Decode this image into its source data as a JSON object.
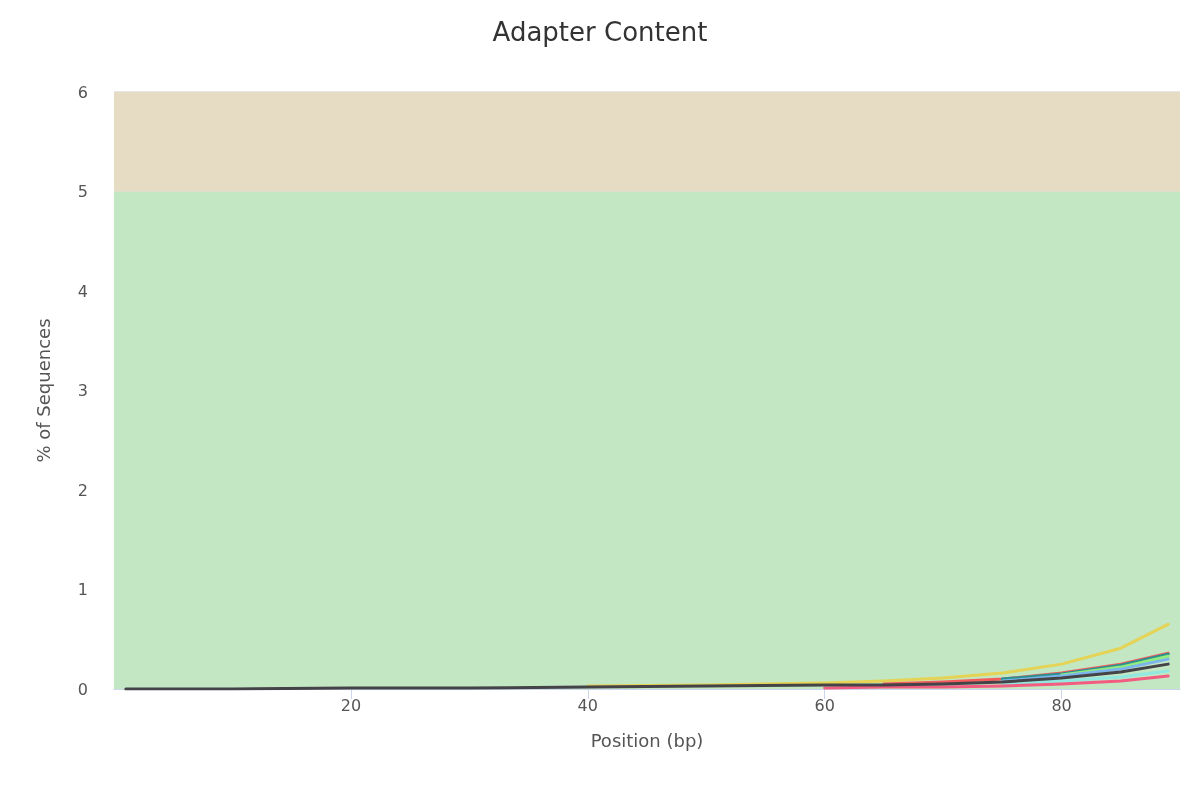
{
  "chart_data": {
    "type": "line",
    "title": "Adapter Content",
    "xlabel": "Position (bp)",
    "ylabel": "% of Sequences",
    "x": [
      1,
      10,
      20,
      30,
      40,
      50,
      60,
      65,
      70,
      75,
      80,
      85,
      89
    ],
    "series": [
      {
        "color": "#e4d354",
        "values": [
          null,
          null,
          null,
          null,
          0.03,
          0.04,
          0.06,
          0.08,
          0.11,
          0.16,
          0.25,
          0.41,
          0.65
        ]
      },
      {
        "color": "#f45b5b",
        "values": [
          null,
          null,
          null,
          null,
          null,
          null,
          null,
          0.05,
          0.07,
          0.1,
          0.16,
          0.25,
          0.36
        ]
      },
      {
        "color": "#2b908f",
        "values": [
          null,
          null,
          null,
          null,
          null,
          null,
          null,
          null,
          null,
          0.1,
          0.15,
          0.24,
          0.35
        ]
      },
      {
        "color": "#90ed7d",
        "values": [
          null,
          null,
          null,
          null,
          null,
          null,
          null,
          null,
          null,
          null,
          0.14,
          0.22,
          0.33
        ]
      },
      {
        "color": "#7cb5ec",
        "values": [
          null,
          null,
          null,
          null,
          null,
          null,
          null,
          null,
          null,
          0.08,
          0.13,
          0.2,
          0.3
        ]
      },
      {
        "color": "#91e8e1",
        "values": [
          null,
          null,
          null,
          null,
          null,
          null,
          null,
          null,
          null,
          0.05,
          0.08,
          0.12,
          0.18
        ]
      },
      {
        "color": "#f15c80",
        "values": [
          null,
          null,
          null,
          null,
          null,
          null,
          0.01,
          0.02,
          0.02,
          0.03,
          0.05,
          0.08,
          0.13
        ]
      },
      {
        "color": "#434348",
        "values": [
          0,
          0,
          0.01,
          0.01,
          0.02,
          0.03,
          0.04,
          0.04,
          0.05,
          0.07,
          0.11,
          0.17,
          0.25
        ]
      }
    ],
    "xlim": [
      0,
      90
    ],
    "xticks": [
      20,
      40,
      60,
      80
    ],
    "ylim": [
      0,
      6
    ],
    "yticks": [
      0,
      1,
      2,
      3,
      4,
      5,
      6
    ],
    "bands": [
      {
        "axis": "y",
        "from": 0,
        "to": 5,
        "color": "#c3e6c3"
      },
      {
        "axis": "y",
        "from": 5,
        "to": 6,
        "color": "#e6dcc3"
      }
    ],
    "grid": "y",
    "marker": "none",
    "line_style": "solid"
  }
}
